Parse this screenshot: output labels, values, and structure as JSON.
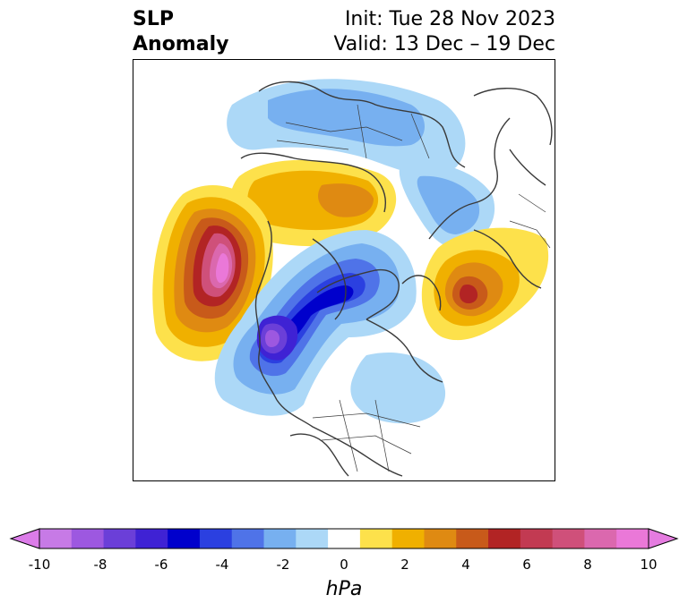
{
  "title": {
    "left_line1": "SLP",
    "left_line2": "Anomaly",
    "right_line1": "Init: Tue 28 Nov 2023",
    "right_line2": "Valid: 13 Dec – 19 Dec"
  },
  "colorbar": {
    "unit": "hPa",
    "ticks": [
      "-10",
      "-8",
      "-6",
      "-4",
      "-2",
      "0",
      "2",
      "4",
      "6",
      "8",
      "10"
    ],
    "colors": [
      "#c77ae6",
      "#9d58e0",
      "#6b3fd8",
      "#3f22d4",
      "#0000cc",
      "#2b40e0",
      "#4f73e8",
      "#77b0f0",
      "#acd8f7",
      "#ffffff",
      "#fde14b",
      "#f0b000",
      "#df8a12",
      "#c85a1a",
      "#b22424",
      "#c23a52",
      "#cf507a",
      "#db68ae",
      "#ea78d8"
    ],
    "low_extend_color": "#dc7ce9",
    "high_extend_color": "#e57ce0"
  },
  "map": {
    "projection": "north polar stereographic",
    "features": [
      {
        "name": "North Pacific / Alaska high anomaly",
        "sign": "positive",
        "peak": 10
      },
      {
        "name": "Central Canada / Arctic low anomaly",
        "sign": "negative",
        "peak": -8
      },
      {
        "name": "Western Europe high anomaly",
        "sign": "positive",
        "peak": 6
      },
      {
        "name": "Siberia high anomaly",
        "sign": "positive",
        "peak": 4
      }
    ]
  }
}
